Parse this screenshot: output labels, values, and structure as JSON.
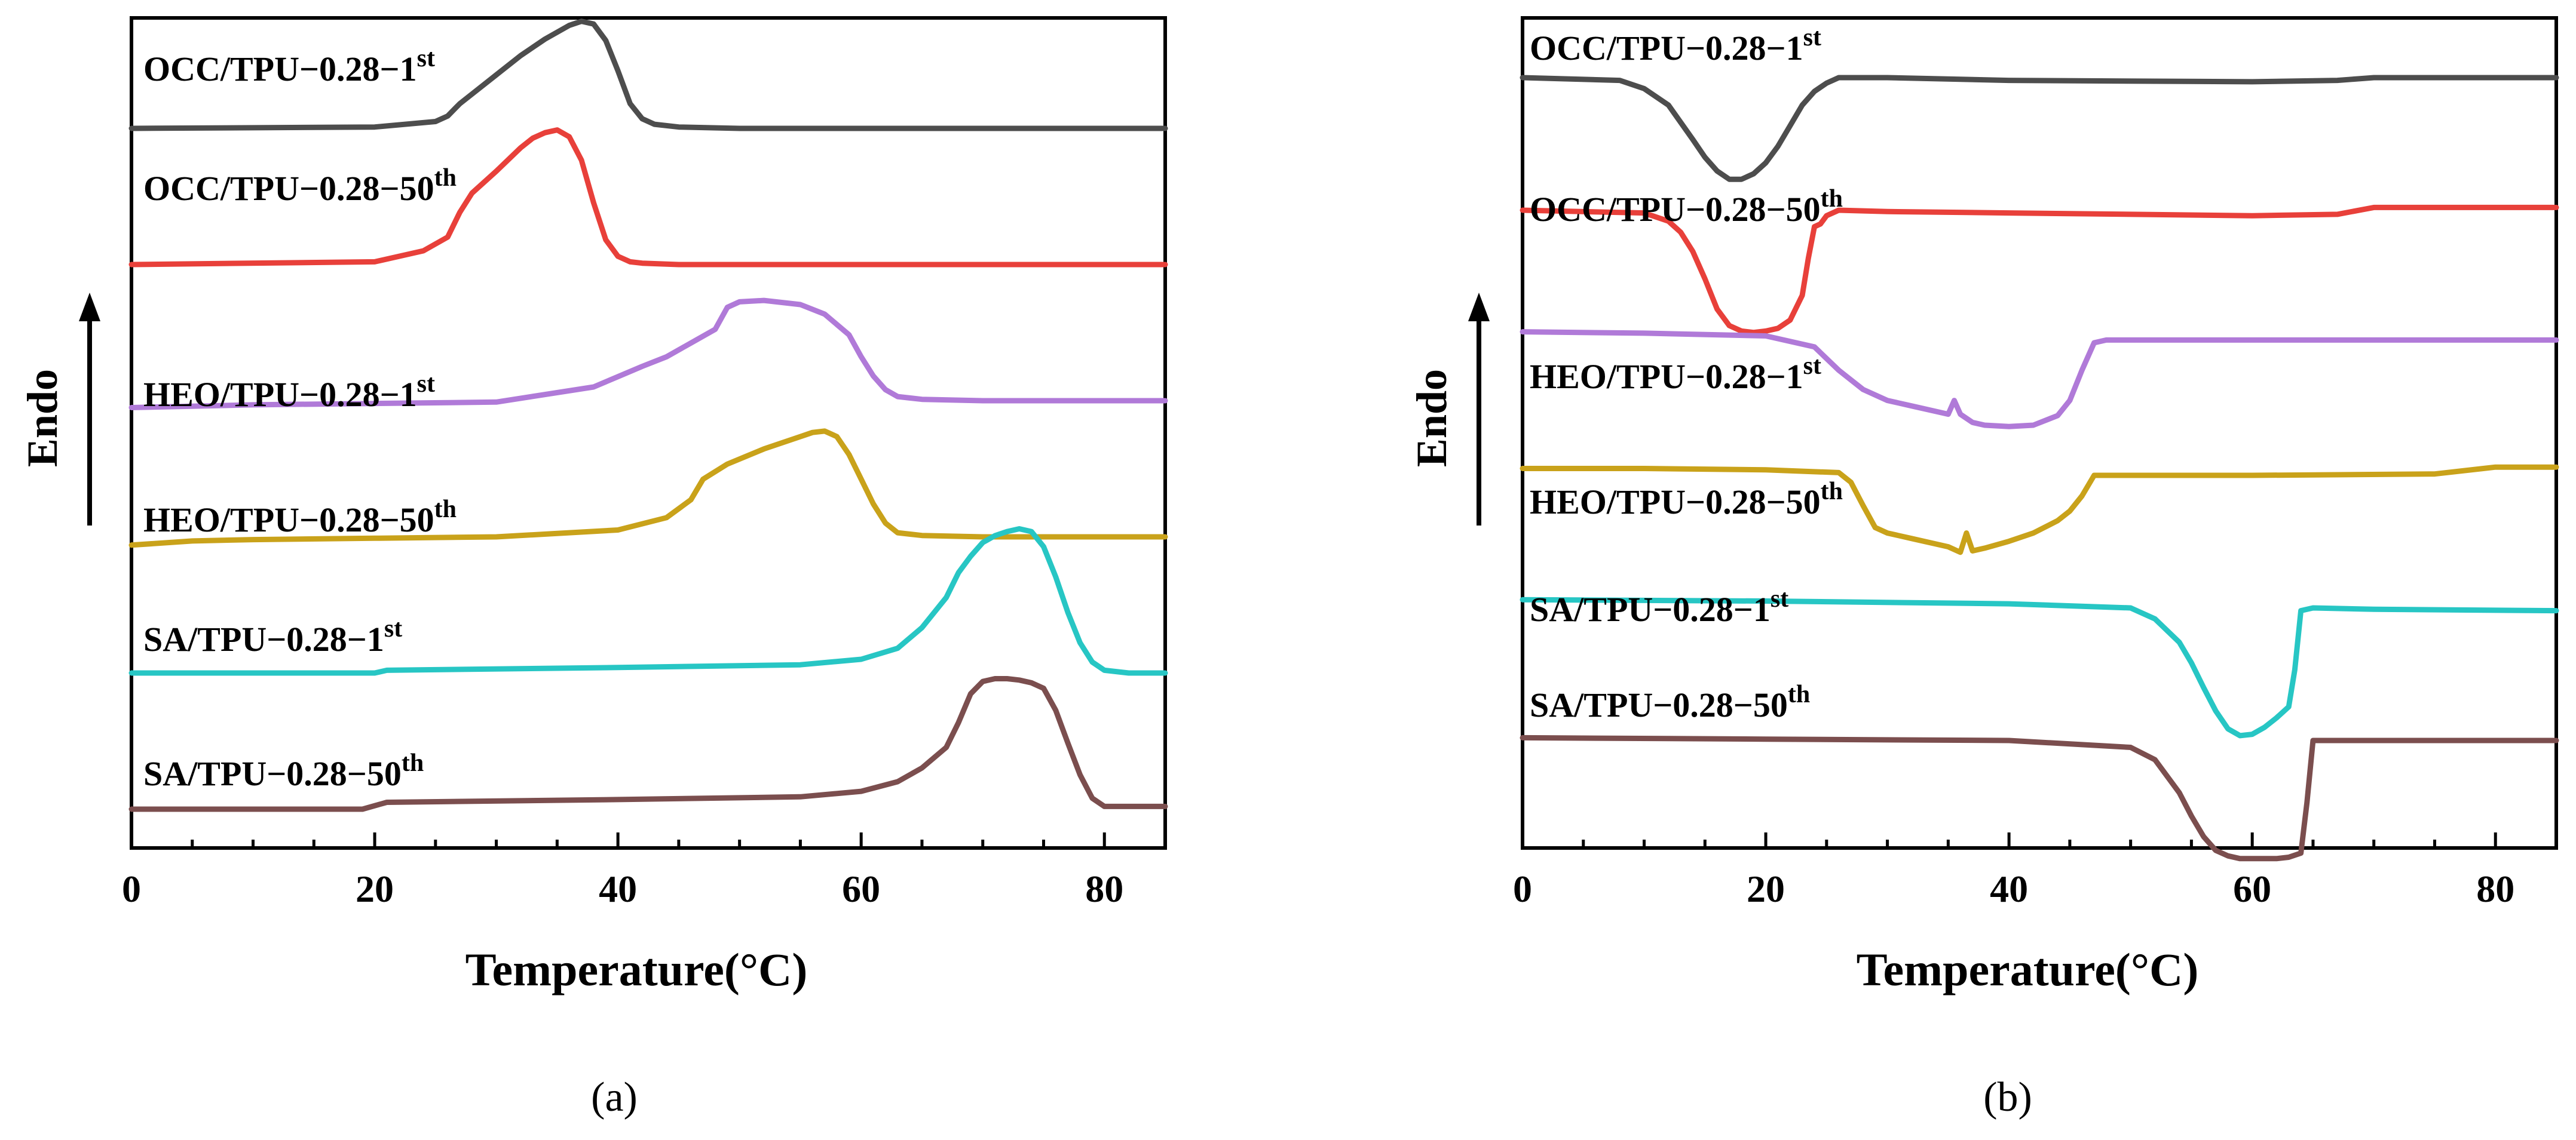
{
  "chart_data": [
    {
      "panel": "a",
      "type": "line",
      "panel_label": "(a)",
      "xlabel": "Temperature(°C)",
      "ylabel": "Endo",
      "xlim": [
        0,
        85
      ],
      "xticks": [
        0,
        20,
        40,
        60,
        80
      ],
      "yticks_shown": false,
      "y_units": "offset heat flow (a.u.)",
      "series": [
        {
          "name": "OCC/TPU-0.28-1st",
          "base": "OCC/TPU−0.28−1",
          "sup": "st",
          "color": "#4d4d4d",
          "offset": 5.0,
          "x": [
            0,
            20,
            25,
            26,
            27,
            28,
            30,
            32,
            34,
            36,
            37,
            38,
            39,
            40,
            41,
            42,
            43,
            45,
            50,
            60,
            70,
            85
          ],
          "y": [
            0,
            0.01,
            0.05,
            0.09,
            0.18,
            0.25,
            0.39,
            0.53,
            0.65,
            0.75,
            0.78,
            0.76,
            0.64,
            0.42,
            0.18,
            0.07,
            0.03,
            0.01,
            0,
            0,
            0,
            0
          ]
        },
        {
          "name": "OCC/TPU-0.28-50th",
          "base": "OCC/TPU−0.28−50",
          "sup": "th",
          "color": "#e8403a",
          "offset": 4.0,
          "x": [
            0,
            20,
            24,
            26,
            27,
            28,
            30,
            32,
            33,
            34,
            35,
            36,
            37,
            38,
            39,
            40,
            41,
            42,
            45,
            60,
            85
          ],
          "y": [
            0,
            0.02,
            0.1,
            0.2,
            0.38,
            0.52,
            0.68,
            0.85,
            0.92,
            0.96,
            0.98,
            0.93,
            0.76,
            0.45,
            0.18,
            0.06,
            0.02,
            0.01,
            0,
            0,
            0
          ]
        },
        {
          "name": "HEO/TPU-0.28-1st",
          "base": "HEO/TPU−0.28−1",
          "sup": "st",
          "color": "#b07ad8",
          "offset": 3.0,
          "x": [
            0,
            10,
            20,
            30,
            38,
            42,
            44,
            46,
            48,
            49,
            50,
            52,
            55,
            57,
            59,
            60,
            61,
            62,
            63,
            65,
            70,
            85
          ],
          "y": [
            -0.05,
            -0.03,
            -0.02,
            -0.01,
            0.1,
            0.25,
            0.32,
            0.42,
            0.52,
            0.68,
            0.72,
            0.73,
            0.7,
            0.63,
            0.48,
            0.32,
            0.18,
            0.08,
            0.03,
            0.01,
            0,
            0
          ]
        },
        {
          "name": "HEO/TPU-0.28-50th",
          "base": "HEO/TPU−0.28−50",
          "sup": "th",
          "color": "#c9a21a",
          "offset": 2.0,
          "x": [
            0,
            5,
            10,
            20,
            30,
            40,
            44,
            46,
            47,
            49,
            52,
            55,
            56,
            57,
            58,
            59,
            60,
            61,
            62,
            63,
            65,
            70,
            85
          ],
          "y": [
            -0.06,
            -0.03,
            -0.02,
            -0.01,
            0,
            0.05,
            0.14,
            0.27,
            0.42,
            0.53,
            0.64,
            0.73,
            0.76,
            0.77,
            0.73,
            0.6,
            0.42,
            0.24,
            0.1,
            0.03,
            0.01,
            0,
            0
          ]
        },
        {
          "name": "SA/TPU-0.28-1st",
          "base": "SA/TPU−0.28−1",
          "sup": "st",
          "color": "#27c6c4",
          "offset": 1.0,
          "x": [
            0,
            20,
            21,
            40,
            55,
            60,
            63,
            65,
            67,
            68,
            69,
            70,
            71,
            72,
            73,
            74,
            75,
            76,
            77,
            78,
            79,
            80,
            82,
            85
          ],
          "y": [
            0,
            0,
            0.02,
            0.04,
            0.06,
            0.1,
            0.18,
            0.33,
            0.55,
            0.73,
            0.85,
            0.95,
            1.0,
            1.03,
            1.05,
            1.03,
            0.92,
            0.7,
            0.44,
            0.22,
            0.08,
            0.02,
            0,
            0
          ]
        },
        {
          "name": "SA/TPU-0.28-50th",
          "base": "SA/TPU−0.28−50",
          "sup": "th",
          "color": "#7b4e4e",
          "offset": 0.0,
          "x": [
            0,
            19,
            21,
            40,
            55,
            60,
            63,
            65,
            67,
            68,
            69,
            70,
            71,
            72,
            73,
            74,
            75,
            76,
            77,
            78,
            79,
            80,
            85
          ],
          "y": [
            0,
            0,
            0.05,
            0.07,
            0.09,
            0.13,
            0.2,
            0.3,
            0.45,
            0.63,
            0.84,
            0.93,
            0.95,
            0.95,
            0.94,
            0.92,
            0.88,
            0.72,
            0.48,
            0.25,
            0.08,
            0.02,
            0.02
          ]
        }
      ]
    },
    {
      "panel": "b",
      "type": "line",
      "panel_label": "(b)",
      "xlabel": "Temperature(°C)",
      "ylabel": "Endo",
      "xlim": [
        0,
        85
      ],
      "xticks": [
        0,
        20,
        40,
        60,
        80
      ],
      "yticks_shown": false,
      "y_units": "offset heat flow (a.u.)",
      "series": [
        {
          "name": "OCC/TPU-0.28-1st",
          "base": "OCC/TPU−0.28−1",
          "sup": "st",
          "color": "#4d4d4d",
          "offset": 5.0,
          "x": [
            0,
            8,
            10,
            12,
            14,
            15,
            16,
            17,
            18,
            19,
            20,
            21,
            22,
            23,
            24,
            25,
            26,
            30,
            40,
            60,
            67,
            70,
            85
          ],
          "y": [
            0,
            -0.02,
            -0.08,
            -0.2,
            -0.45,
            -0.58,
            -0.68,
            -0.74,
            -0.74,
            -0.7,
            -0.62,
            -0.5,
            -0.35,
            -0.2,
            -0.1,
            -0.04,
            0,
            0,
            -0.02,
            -0.03,
            -0.02,
            0,
            0
          ]
        },
        {
          "name": "OCC/TPU-0.28-50th",
          "base": "OCC/TPU−0.28−50",
          "sup": "th",
          "color": "#e8403a",
          "offset": 4.0,
          "x": [
            0,
            10,
            12,
            13,
            14,
            15,
            16,
            17,
            18,
            19,
            20,
            21,
            22,
            23,
            23.5,
            24,
            24.5,
            25,
            26,
            30,
            40,
            60,
            67,
            70,
            85
          ],
          "y": [
            0,
            -0.02,
            -0.08,
            -0.16,
            -0.3,
            -0.5,
            -0.72,
            -0.84,
            -0.88,
            -0.89,
            -0.88,
            -0.86,
            -0.8,
            -0.62,
            -0.35,
            -0.12,
            -0.1,
            -0.04,
            0,
            -0.01,
            -0.02,
            -0.04,
            -0.03,
            0.02,
            0.02
          ]
        },
        {
          "name": "HEO/TPU-0.28-1st",
          "base": "HEO/TPU−0.28−1",
          "sup": "st",
          "color": "#b07ad8",
          "offset": 3.0,
          "x": [
            0,
            10,
            20,
            24,
            26,
            28,
            30,
            32,
            34,
            35,
            35.5,
            36,
            36.5,
            37,
            38,
            40,
            42,
            44,
            45,
            46,
            47,
            48,
            60,
            85
          ],
          "y": [
            0.08,
            0.07,
            0.05,
            -0.03,
            -0.2,
            -0.34,
            -0.42,
            -0.46,
            -0.5,
            -0.52,
            -0.42,
            -0.52,
            -0.55,
            -0.58,
            -0.6,
            -0.61,
            -0.6,
            -0.53,
            -0.42,
            -0.2,
            0,
            0.02,
            0.02,
            0.02
          ]
        },
        {
          "name": "HEO/TPU-0.28-50th",
          "base": "HEO/TPU−0.28−50",
          "sup": "th",
          "color": "#c9a21a",
          "offset": 2.0,
          "x": [
            0,
            10,
            20,
            26,
            27,
            28,
            29,
            30,
            32,
            34,
            35,
            36,
            36.5,
            37,
            38,
            40,
            42,
            44,
            45,
            46,
            47,
            48,
            60,
            75,
            79,
            80,
            85
          ],
          "y": [
            0.05,
            0.05,
            0.04,
            0.02,
            -0.05,
            -0.22,
            -0.38,
            -0.42,
            -0.46,
            -0.5,
            -0.52,
            -0.56,
            -0.42,
            -0.55,
            -0.53,
            -0.48,
            -0.42,
            -0.33,
            -0.26,
            -0.15,
            0,
            0,
            0,
            0.01,
            0.05,
            0.06,
            0.06
          ]
        },
        {
          "name": "SA/TPU-0.28-1st",
          "base": "SA/TPU−0.28−1",
          "sup": "st",
          "color": "#27c6c4",
          "offset": 1.0,
          "x": [
            0,
            20,
            40,
            50,
            52,
            54,
            55,
            56,
            57,
            58,
            59,
            60,
            61,
            62,
            63,
            63.5,
            64,
            65,
            70,
            85
          ],
          "y": [
            0.06,
            0.05,
            0.03,
            0,
            -0.08,
            -0.25,
            -0.4,
            -0.58,
            -0.75,
            -0.88,
            -0.93,
            -0.92,
            -0.87,
            -0.8,
            -0.72,
            -0.45,
            -0.02,
            0,
            -0.01,
            -0.02
          ]
        },
        {
          "name": "SA/TPU-0.28-50th",
          "base": "SA/TPU−0.28−50",
          "sup": "th",
          "color": "#7b4e4e",
          "offset": 0.0,
          "x": [
            0,
            20,
            40,
            50,
            52,
            54,
            55,
            56,
            57,
            58,
            59,
            60,
            61,
            62,
            63,
            64,
            64.5,
            65,
            70,
            85
          ],
          "y": [
            0.02,
            0.01,
            0,
            -0.05,
            -0.14,
            -0.38,
            -0.55,
            -0.7,
            -0.8,
            -0.84,
            -0.86,
            -0.86,
            -0.86,
            -0.86,
            -0.85,
            -0.82,
            -0.45,
            0,
            0,
            0
          ]
        }
      ]
    }
  ]
}
